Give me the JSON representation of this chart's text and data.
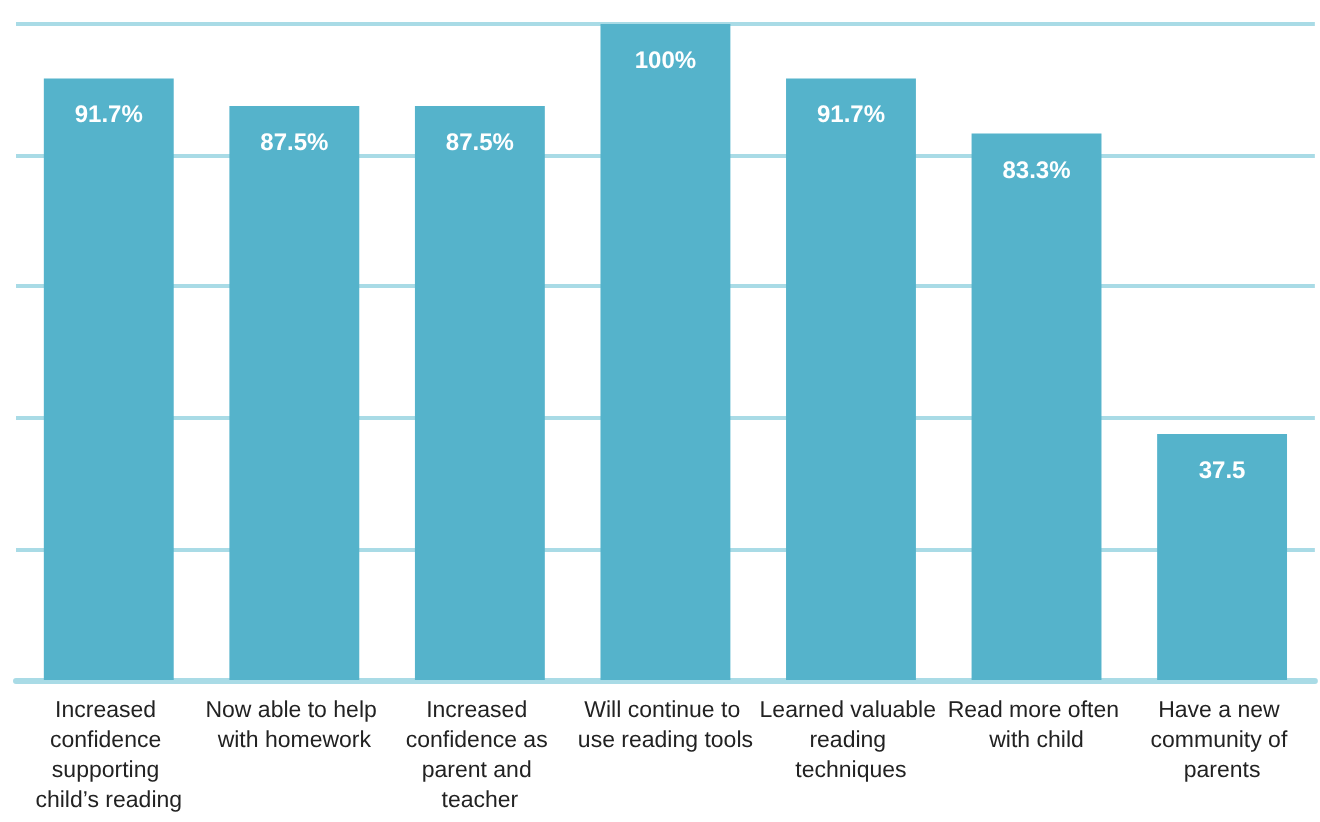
{
  "chart_data": {
    "type": "bar",
    "categories": [
      "Increased confidence supporting child’s reading",
      "Now able to help with homework",
      "Increased confidence as parent and teacher",
      "Will continue to use reading tools",
      "Learned valuable reading techniques",
      "Read more often with child",
      "Have a new community of parents"
    ],
    "values": [
      91.7,
      87.5,
      87.5,
      100,
      91.7,
      83.3,
      37.5
    ],
    "value_labels": [
      "91.7%",
      "87.5%",
      "87.5%",
      "100%",
      "91.7%",
      "83.3%",
      "37.5"
    ],
    "color": "#55b3cb",
    "ylim": [
      0,
      100
    ],
    "yticks": [
      {
        "value": 0,
        "label": null
      },
      {
        "value": 20,
        "label": null
      },
      {
        "value": 40,
        "label": null
      },
      {
        "value": 60,
        "label": null
      },
      {
        "value": 80,
        "label": null
      },
      {
        "value": 100,
        "label": null
      }
    ],
    "grid": true,
    "tick_labels": "x"
  }
}
